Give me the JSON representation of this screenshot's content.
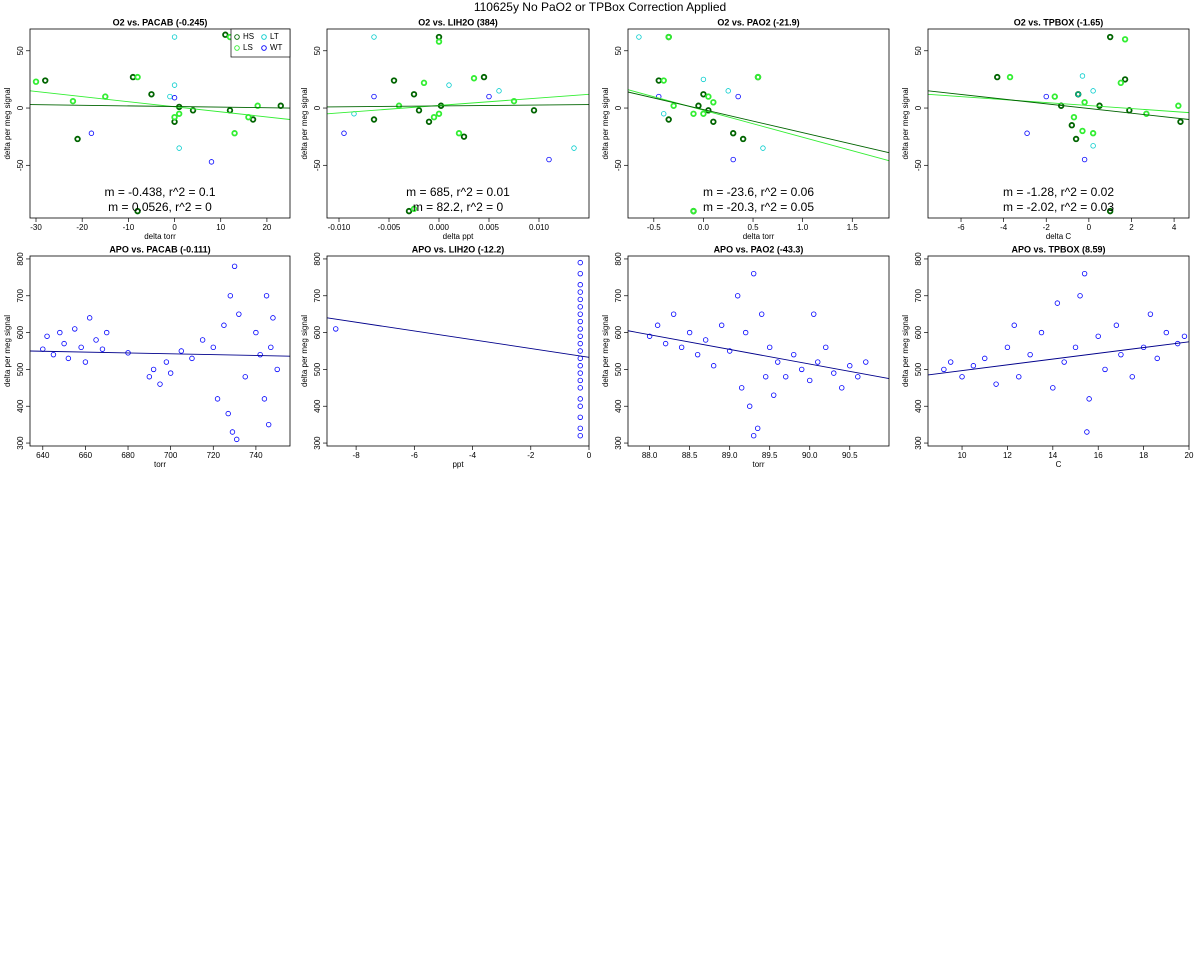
{
  "title": "110625y   No PaO2 or TPBox Correction Applied",
  "chart_data": [
    {
      "type": "scatter",
      "title": "O2 vs. PACAB (-0.245)",
      "x_label": "delta torr",
      "y_label": "delta per meg signal",
      "xlim": [
        -31.3,
        25
      ],
      "ylim": [
        -96,
        69
      ],
      "xticks": [
        -30,
        -20,
        -10,
        0,
        10,
        20
      ],
      "yticks": [
        -50,
        0,
        50
      ],
      "legend": "top-right",
      "series": [
        {
          "name": "HS",
          "color": "#006400",
          "x": [
            -28,
            -21,
            -9,
            -5,
            0,
            1,
            4,
            12,
            17,
            23,
            -8,
            11
          ],
          "values": [
            24,
            -27,
            27,
            12,
            -12,
            1,
            -2,
            -2,
            -10,
            2,
            -90,
            64
          ]
        },
        {
          "name": "LS",
          "color": "#33ee33",
          "x": [
            -30,
            -22,
            -15,
            -8,
            0,
            13,
            16,
            18,
            1,
            12
          ],
          "values": [
            23,
            6,
            10,
            27,
            -8,
            -22,
            -8,
            2,
            -5,
            62
          ]
        },
        {
          "name": "LT",
          "color": "#00cccc",
          "x": [
            0,
            0,
            1,
            -1
          ],
          "values": [
            62,
            20,
            -35,
            10
          ]
        },
        {
          "name": "WT",
          "color": "#0000ff",
          "x": [
            -18,
            8,
            0
          ],
          "values": [
            -22,
            -47,
            9
          ]
        }
      ],
      "fits": [
        {
          "color": "#33ee33",
          "x": [
            -31.3,
            25
          ],
          "values": [
            15,
            -10
          ]
        },
        {
          "color": "#006400",
          "x": [
            -31.3,
            25
          ],
          "values": [
            3,
            0
          ]
        }
      ],
      "annotations": [
        {
          "text": "m = -0.438, r^2 = 0.1",
          "color": "#33ee33"
        },
        {
          "text": "m = 0.0526, r^2 = 0",
          "color": "#006400"
        }
      ]
    },
    {
      "type": "scatter",
      "title": "O2 vs. LIH2O (384)",
      "x_label": "delta ppt",
      "y_label": "delta per meg signal",
      "xlim": [
        -0.0112,
        0.015
      ],
      "ylim": [
        -96,
        69
      ],
      "xticks": [
        {
          "value": -0.01,
          "label": "-0.010"
        },
        {
          "value": -0.005,
          "label": "-0.005"
        },
        {
          "value": 0,
          "label": "0.000"
        },
        {
          "value": 0.005,
          "label": "0.005"
        },
        {
          "value": 0.01,
          "label": "0.010"
        }
      ],
      "yticks": [
        -50,
        0,
        50
      ],
      "series": [
        {
          "color": "#006400",
          "x": [
            -0.0045,
            -0.0065,
            -0.0025,
            -0.002,
            0,
            0.0002,
            0.0025,
            0.0045,
            0.0095,
            -0.001,
            -0.003
          ],
          "values": [
            24,
            -10,
            12,
            -2,
            62,
            2,
            -25,
            27,
            -2,
            -12,
            -90
          ]
        },
        {
          "color": "#33ee33",
          "x": [
            -0.004,
            0,
            -0.0005,
            -0.0015,
            0.002,
            0.0035,
            0.0075,
            -0.0025,
            0
          ],
          "values": [
            2,
            58,
            -8,
            22,
            -22,
            26,
            6,
            -88,
            -5
          ]
        },
        {
          "color": "#00cccc",
          "x": [
            -0.0065,
            -0.0085,
            0.006,
            0.0135,
            0.001
          ],
          "values": [
            62,
            -5,
            15,
            -35,
            20
          ]
        },
        {
          "color": "#0000ff",
          "x": [
            -0.0095,
            -0.0065,
            0.005,
            0.011
          ],
          "values": [
            -22,
            10,
            10,
            -45
          ]
        }
      ],
      "fits": [
        {
          "color": "#33ee33",
          "x": [
            -0.0112,
            0.015
          ],
          "values": [
            -5,
            12
          ]
        },
        {
          "color": "#006400",
          "x": [
            -0.0112,
            0.015
          ],
          "values": [
            1,
            3
          ]
        }
      ],
      "annotations": [
        {
          "text": "m = 685, r^2 = 0.01",
          "color": "#33ee33"
        },
        {
          "text": "m = 82.2, r^2 = 0",
          "color": "#006400"
        }
      ]
    },
    {
      "type": "scatter",
      "title": "O2 vs. PAO2 (-21.9)",
      "x_label": "delta torr",
      "y_label": "delta per meg signal",
      "xlim": [
        -0.76,
        1.87
      ],
      "ylim": [
        -96,
        69
      ],
      "xticks": [
        -0.5,
        {
          "value": 0,
          "label": "0.0"
        },
        0.5,
        {
          "value": 1,
          "label": "1.0"
        },
        1.5
      ],
      "yticks": [
        -50,
        0,
        50
      ],
      "series": [
        {
          "color": "#006400",
          "x": [
            -0.45,
            -0.35,
            -0.35,
            -0.05,
            0,
            0.05,
            0.1,
            0.3,
            0.4,
            0.55,
            -0.1
          ],
          "values": [
            24,
            62,
            -10,
            2,
            12,
            -2,
            -12,
            -22,
            -27,
            27,
            -90
          ]
        },
        {
          "color": "#33ee33",
          "x": [
            -0.4,
            -0.3,
            0,
            -0.1,
            0.1,
            0.55,
            0.05,
            -0.1,
            -0.35
          ],
          "values": [
            24,
            2,
            -5,
            -5,
            5,
            27,
            10,
            -90,
            62
          ]
        },
        {
          "color": "#00cccc",
          "x": [
            -0.65,
            -0.4,
            0.25,
            0.6,
            0
          ],
          "values": [
            62,
            -5,
            15,
            -35,
            25
          ]
        },
        {
          "color": "#0000ff",
          "x": [
            -0.45,
            0.3,
            0.35
          ],
          "values": [
            10,
            -45,
            10
          ]
        }
      ],
      "fits": [
        {
          "color": "#33ee33",
          "x": [
            -0.76,
            1.87
          ],
          "values": [
            16,
            -46
          ]
        },
        {
          "color": "#006400",
          "x": [
            -0.76,
            1.87
          ],
          "values": [
            14,
            -39
          ]
        }
      ],
      "annotations": [
        {
          "text": "m = -23.6, r^2 = 0.06",
          "color": "#33ee33"
        },
        {
          "text": "m = -20.3, r^2 = 0.05",
          "color": "#006400"
        }
      ]
    },
    {
      "type": "scatter",
      "title": "O2 vs. TPBOX (-1.65)",
      "x_label": "delta C",
      "y_label": "delta per meg signal",
      "xlim": [
        -7.55,
        4.7
      ],
      "ylim": [
        -96,
        69
      ],
      "xticks": [
        -6,
        -4,
        -2,
        0,
        2,
        4
      ],
      "yticks": [
        -50,
        0,
        50
      ],
      "series": [
        {
          "color": "#006400",
          "x": [
            -4.3,
            -1.3,
            -0.8,
            -0.6,
            0.5,
            1,
            1.7,
            1.9,
            4.3,
            -0.5,
            1
          ],
          "values": [
            27,
            2,
            -15,
            -27,
            2,
            62,
            25,
            -2,
            -12,
            12,
            -90
          ]
        },
        {
          "color": "#33ee33",
          "x": [
            -3.7,
            -1.6,
            -0.3,
            -0.2,
            0.2,
            1.5,
            1.7,
            2.7,
            4.2,
            -0.7
          ],
          "values": [
            27,
            10,
            -20,
            5,
            -22,
            22,
            60,
            -5,
            2,
            -8
          ]
        },
        {
          "color": "#00cccc",
          "x": [
            -0.5,
            0.2,
            -0.3,
            0.2
          ],
          "values": [
            12,
            15,
            28,
            -33
          ]
        },
        {
          "color": "#0000ff",
          "x": [
            -2.9,
            -0.2,
            -2
          ],
          "values": [
            -22,
            -45,
            10
          ]
        }
      ],
      "fits": [
        {
          "color": "#33ee33",
          "x": [
            -7.55,
            4.7
          ],
          "values": [
            12,
            -4
          ]
        },
        {
          "color": "#006400",
          "x": [
            -7.55,
            4.7
          ],
          "values": [
            15,
            -10
          ]
        }
      ],
      "annotations": [
        {
          "text": "m = -1.28, r^2 = 0.02",
          "color": "#33ee33"
        },
        {
          "text": "m = -2.02, r^2 = 0.03",
          "color": "#006400"
        }
      ]
    },
    {
      "type": "scatter",
      "title": "APO vs. PACAB (-0.111)",
      "x_label": "torr",
      "y_label": "delta per meg signal",
      "xlim": [
        634,
        756
      ],
      "ylim": [
        292,
        808
      ],
      "xticks": [
        640,
        660,
        680,
        700,
        720,
        740
      ],
      "yticks": [
        300,
        400,
        500,
        600,
        700,
        800
      ],
      "series": [
        {
          "color": "#0000ff",
          "x": [
            640,
            642,
            645,
            648,
            650,
            652,
            655,
            658,
            660,
            662,
            665,
            668,
            670,
            680,
            690,
            692,
            695,
            698,
            700,
            705,
            710,
            715,
            720,
            722,
            725,
            727,
            728,
            729,
            730,
            731,
            732,
            735,
            740,
            742,
            744,
            745,
            746,
            747,
            748,
            750
          ],
          "values": [
            555,
            590,
            540,
            600,
            570,
            530,
            610,
            560,
            520,
            640,
            580,
            555,
            600,
            545,
            480,
            500,
            460,
            520,
            490,
            550,
            530,
            580,
            560,
            420,
            620,
            380,
            700,
            330,
            780,
            310,
            650,
            480,
            600,
            540,
            420,
            700,
            350,
            560,
            640,
            500
          ]
        }
      ],
      "fits": [
        {
          "color": "#00008b",
          "x": [
            634,
            756
          ],
          "values": [
            550,
            536
          ]
        }
      ]
    },
    {
      "type": "scatter",
      "title": "APO vs. LIH2O (-12.2)",
      "x_label": "ppt",
      "y_label": "delta per meg signal",
      "xlim": [
        -9,
        0
      ],
      "ylim": [
        292,
        808
      ],
      "xticks": [
        -8,
        -6,
        -4,
        -2,
        0
      ],
      "yticks": [
        300,
        400,
        500,
        600,
        700,
        800
      ],
      "series": [
        {
          "color": "#0000ff",
          "x": [
            -8.7,
            -0.3,
            -0.3,
            -0.3,
            -0.3,
            -0.3,
            -0.3,
            -0.3,
            -0.3,
            -0.3,
            -0.3,
            -0.3,
            -0.3,
            -0.3,
            -0.3,
            -0.3,
            -0.3,
            -0.3,
            -0.3,
            -0.3,
            -0.3,
            -0.3,
            -0.3
          ],
          "values": [
            610,
            320,
            340,
            370,
            400,
            420,
            450,
            470,
            490,
            510,
            530,
            550,
            570,
            590,
            610,
            630,
            650,
            670,
            690,
            710,
            730,
            760,
            790
          ]
        }
      ],
      "fits": [
        {
          "color": "#00008b",
          "x": [
            -9,
            0
          ],
          "values": [
            640,
            533
          ]
        }
      ]
    },
    {
      "type": "scatter",
      "title": "APO vs. PAO2 (-43.3)",
      "x_label": "torr",
      "y_label": "delta per meg signal",
      "xlim": [
        87.73,
        90.99
      ],
      "ylim": [
        292,
        808
      ],
      "xticks": [
        {
          "value": 88,
          "label": "88.0"
        },
        88.5,
        {
          "value": 89,
          "label": "89.0"
        },
        89.5,
        {
          "value": 90,
          "label": "90.0"
        },
        90.5
      ],
      "yticks": [
        300,
        400,
        500,
        600,
        700,
        800
      ],
      "series": [
        {
          "color": "#0000ff",
          "x": [
            88,
            88.1,
            88.2,
            88.3,
            88.4,
            88.5,
            88.6,
            88.7,
            88.8,
            88.9,
            89,
            89.1,
            89.15,
            89.2,
            89.25,
            89.3,
            89.35,
            89.4,
            89.45,
            89.5,
            89.55,
            89.6,
            89.7,
            89.8,
            89.9,
            90,
            90.05,
            90.1,
            90.2,
            90.3,
            90.4,
            90.5,
            90.6,
            90.7,
            89.3
          ],
          "values": [
            590,
            620,
            570,
            650,
            560,
            600,
            540,
            580,
            510,
            620,
            550,
            700,
            450,
            600,
            400,
            760,
            340,
            650,
            480,
            560,
            430,
            520,
            480,
            540,
            500,
            470,
            650,
            520,
            560,
            490,
            450,
            510,
            480,
            520,
            320
          ]
        }
      ],
      "fits": [
        {
          "color": "#00008b",
          "x": [
            87.73,
            90.99
          ],
          "values": [
            605,
            475
          ]
        }
      ]
    },
    {
      "type": "scatter",
      "title": "APO vs. TPBOX (8.59)",
      "x_label": "C",
      "y_label": "delta per meg signal",
      "xlim": [
        8.5,
        20
      ],
      "ylim": [
        292,
        808
      ],
      "xticks": [
        10,
        12,
        14,
        16,
        18,
        20
      ],
      "yticks": [
        300,
        400,
        500,
        600,
        700,
        800
      ],
      "series": [
        {
          "color": "#0000ff",
          "x": [
            9.2,
            9.5,
            10,
            10.5,
            11,
            11.5,
            12,
            12.3,
            12.5,
            13,
            13.5,
            14,
            14.2,
            14.5,
            15,
            15.2,
            15.4,
            15.5,
            15.6,
            16,
            16.3,
            16.8,
            17,
            17.5,
            18,
            18.3,
            18.6,
            19,
            19.5,
            19.8
          ],
          "values": [
            500,
            520,
            480,
            510,
            530,
            460,
            560,
            620,
            480,
            540,
            600,
            450,
            680,
            520,
            560,
            700,
            760,
            330,
            420,
            590,
            500,
            620,
            540,
            480,
            560,
            650,
            530,
            600,
            570,
            590
          ]
        }
      ],
      "fits": [
        {
          "color": "#00008b",
          "x": [
            8.5,
            20
          ],
          "values": [
            485,
            575
          ]
        }
      ]
    }
  ]
}
